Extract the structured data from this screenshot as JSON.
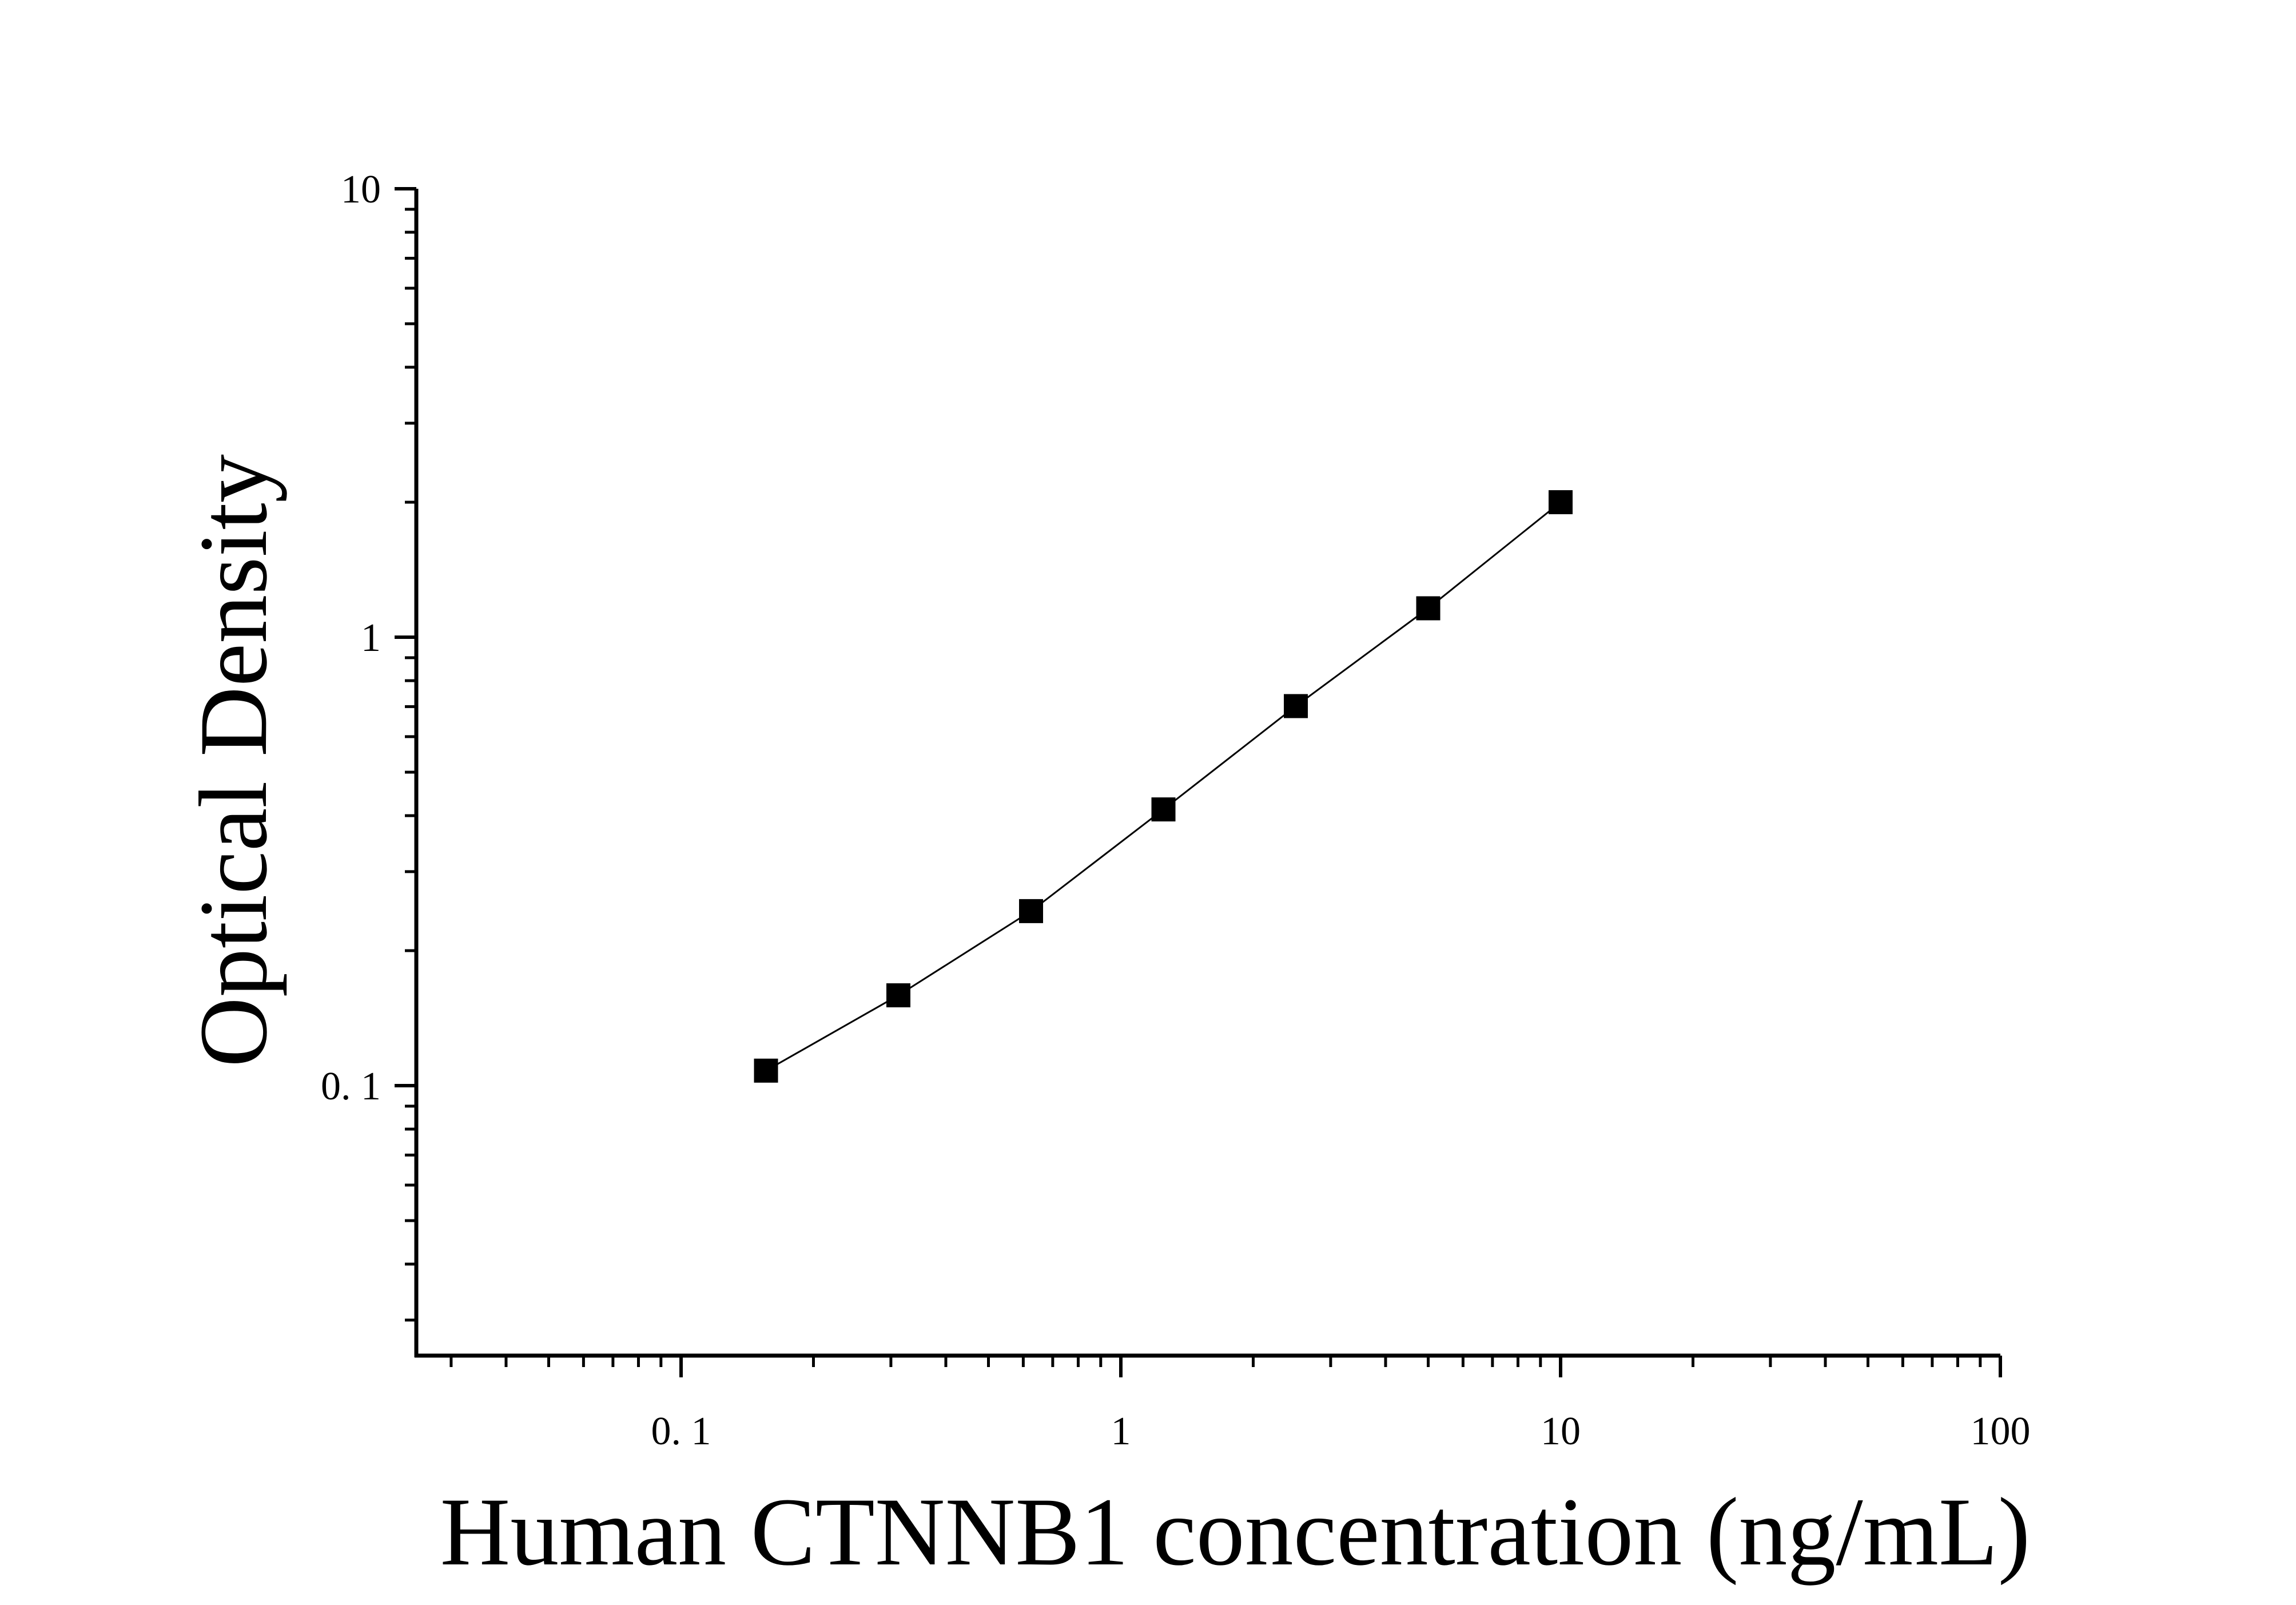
{
  "chart_data": {
    "type": "scatter",
    "xlabel": "Human CTNNB1 concentration (ng/mL)",
    "ylabel": "Optical Density",
    "x_scale": "log",
    "y_scale": "log",
    "xlim": [
      0.025,
      100
    ],
    "ylim": [
      0.025,
      10
    ],
    "x_ticks": [
      {
        "value": 0.1,
        "label": "0. 1"
      },
      {
        "value": 1,
        "label": "1"
      },
      {
        "value": 10,
        "label": "10"
      },
      {
        "value": 100,
        "label": "100"
      }
    ],
    "y_ticks": [
      {
        "value": 0.1,
        "label": "0. 1"
      },
      {
        "value": 1,
        "label": "1"
      },
      {
        "value": 10,
        "label": "10"
      }
    ],
    "grid": false,
    "marker": "square",
    "fit_line": true,
    "series": [
      {
        "x": [
          0.156,
          0.312,
          0.625,
          1.25,
          2.5,
          5,
          10
        ],
        "y": [
          0.108,
          0.159,
          0.245,
          0.413,
          0.702,
          1.16,
          2.0
        ]
      }
    ],
    "colors": {
      "marker": "#000000",
      "line": "#000000",
      "axis": "#000000"
    }
  }
}
